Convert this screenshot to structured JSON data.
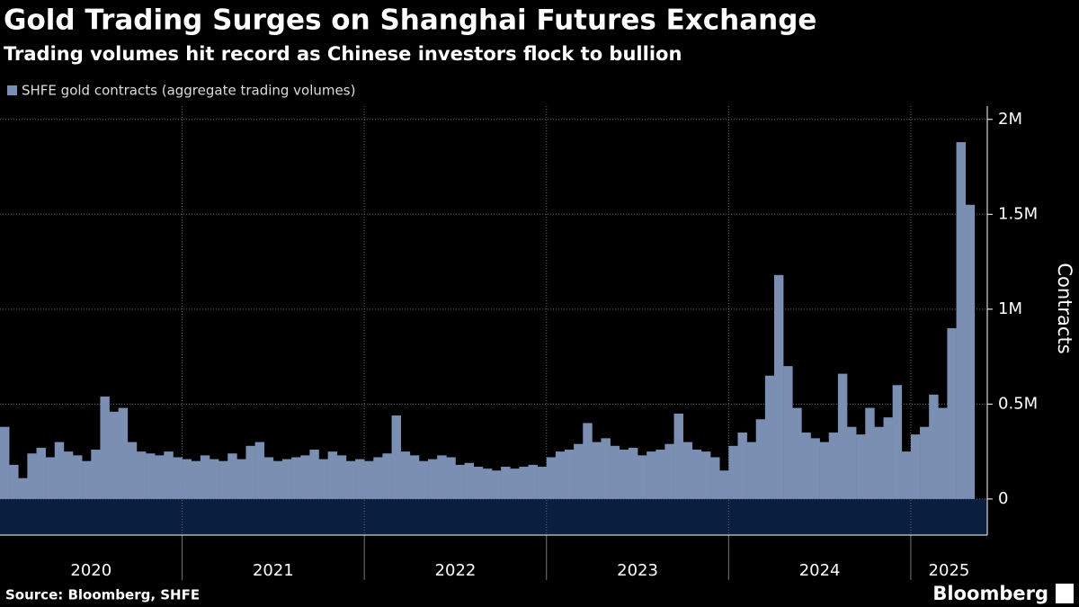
{
  "chart_data": {
    "type": "bar",
    "title": "Gold Trading Surges on Shanghai Futures Exchange",
    "subtitle": "Trading volumes hit record as Chinese investors flock to bullion",
    "y_label": "Contracts",
    "source": "Source: Bloomberg, SHFE",
    "brand": "Bloomberg",
    "series": [
      {
        "name": "SHFE gold contracts (aggregate trading volumes)",
        "color": "#7b8fb3",
        "values": [
          380000,
          180000,
          110000,
          240000,
          270000,
          220000,
          300000,
          250000,
          230000,
          200000,
          260000,
          540000,
          460000,
          480000,
          300000,
          250000,
          240000,
          230000,
          250000,
          220000,
          210000,
          200000,
          230000,
          210000,
          200000,
          240000,
          210000,
          280000,
          300000,
          220000,
          200000,
          210000,
          220000,
          230000,
          260000,
          210000,
          250000,
          230000,
          200000,
          210000,
          200000,
          220000,
          240000,
          440000,
          250000,
          230000,
          200000,
          210000,
          230000,
          220000,
          180000,
          190000,
          170000,
          160000,
          150000,
          170000,
          160000,
          170000,
          180000,
          170000,
          220000,
          250000,
          260000,
          290000,
          400000,
          300000,
          320000,
          280000,
          260000,
          270000,
          230000,
          250000,
          260000,
          290000,
          450000,
          300000,
          260000,
          250000,
          220000,
          150000,
          280000,
          350000,
          300000,
          420000,
          650000,
          1180000,
          700000,
          480000,
          350000,
          320000,
          300000,
          350000,
          660000,
          380000,
          340000,
          480000,
          380000,
          430000,
          600000,
          250000,
          340000,
          380000,
          550000,
          480000,
          900000,
          1880000,
          1550000
        ]
      }
    ],
    "x": [
      2020.0,
      2020.05,
      2020.1,
      2020.15,
      2020.2,
      2020.25,
      2020.3,
      2020.35,
      2020.4,
      2020.45,
      2020.5,
      2020.55,
      2020.6,
      2020.65,
      2020.7,
      2020.75,
      2020.8,
      2020.85,
      2020.9,
      2020.95,
      2021.0,
      2021.05,
      2021.1,
      2021.15,
      2021.2,
      2021.25,
      2021.3,
      2021.35,
      2021.4,
      2021.45,
      2021.5,
      2021.55,
      2021.6,
      2021.65,
      2021.7,
      2021.75,
      2021.8,
      2021.85,
      2021.9,
      2021.95,
      2022.0,
      2022.05,
      2022.1,
      2022.15,
      2022.2,
      2022.25,
      2022.3,
      2022.35,
      2022.4,
      2022.45,
      2022.5,
      2022.55,
      2022.6,
      2022.65,
      2022.7,
      2022.75,
      2022.8,
      2022.85,
      2022.9,
      2022.95,
      2023.0,
      2023.05,
      2023.1,
      2023.15,
      2023.2,
      2023.25,
      2023.3,
      2023.35,
      2023.4,
      2023.45,
      2023.5,
      2023.55,
      2023.6,
      2023.65,
      2023.7,
      2023.75,
      2023.8,
      2023.85,
      2023.9,
      2023.95,
      2024.0,
      2024.05,
      2024.1,
      2024.15,
      2024.2,
      2024.25,
      2024.3,
      2024.35,
      2024.4,
      2024.45,
      2024.5,
      2024.55,
      2024.6,
      2024.65,
      2024.7,
      2024.75,
      2024.8,
      2024.85,
      2024.9,
      2024.95,
      2025.0,
      2025.05,
      2025.1,
      2025.15,
      2025.2,
      2025.25,
      2025.3
    ],
    "bar_width": 0.05,
    "xlim": [
      2020,
      2025.42
    ],
    "xticks": [
      {
        "value": 2020,
        "label": "2020"
      },
      {
        "value": 2021,
        "label": "2021"
      },
      {
        "value": 2022,
        "label": "2022"
      },
      {
        "value": 2023,
        "label": "2023"
      },
      {
        "value": 2024,
        "label": "2024"
      },
      {
        "value": 2025,
        "label": "2025"
      }
    ],
    "ylim": [
      -190000,
      2070000
    ],
    "yticks": [
      0,
      {
        "value": 500000,
        "label": "0.5M"
      },
      {
        "value": 1000000,
        "label": "1M"
      },
      {
        "value": 1500000,
        "label": "1.5M"
      },
      {
        "value": 2000000,
        "label": "2M"
      }
    ],
    "grid": true,
    "y_axis_side": "right"
  }
}
